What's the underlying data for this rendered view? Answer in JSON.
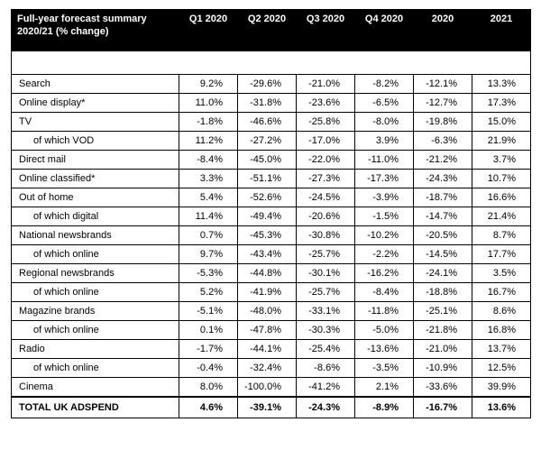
{
  "header": {
    "title": "Full-year forecast summary 2020/21 (% change)",
    "columns": [
      "Q1 2020",
      "Q2 2020",
      "Q3 2020",
      "Q4 2020",
      "2020",
      "2021"
    ]
  },
  "colors": {
    "header_bg": "#000000",
    "header_text": "#ffffff",
    "border": "#000000"
  },
  "chart_data": {
    "type": "table",
    "title": "Full-year forecast summary 2020/21 (% change)",
    "columns": [
      "Q1 2020",
      "Q2 2020",
      "Q3 2020",
      "Q4 2020",
      "2020",
      "2021"
    ],
    "rows": [
      {
        "label": "Search",
        "indent": false,
        "values": [
          "9.2%",
          "-29.6%",
          "-21.0%",
          "-8.2%",
          "-12.1%",
          "13.3%"
        ]
      },
      {
        "label": "Online display*",
        "indent": false,
        "values": [
          "11.0%",
          "-31.8%",
          "-23.6%",
          "-6.5%",
          "-12.7%",
          "17.3%"
        ]
      },
      {
        "label": "TV",
        "indent": false,
        "values": [
          "-1.8%",
          "-46.6%",
          "-25.8%",
          "-8.0%",
          "-19.8%",
          "15.0%"
        ]
      },
      {
        "label": "of which VOD",
        "indent": true,
        "values": [
          "11.2%",
          "-27.2%",
          "-17.0%",
          "3.9%",
          "-6.3%",
          "21.9%"
        ]
      },
      {
        "label": "Direct mail",
        "indent": false,
        "values": [
          "-8.4%",
          "-45.0%",
          "-22.0%",
          "-11.0%",
          "-21.2%",
          "3.7%"
        ]
      },
      {
        "label": "Online classified*",
        "indent": false,
        "values": [
          "3.3%",
          "-51.1%",
          "-27.3%",
          "-17.3%",
          "-24.3%",
          "10.7%"
        ]
      },
      {
        "label": "Out of home",
        "indent": false,
        "values": [
          "5.4%",
          "-52.6%",
          "-24.5%",
          "-3.9%",
          "-18.7%",
          "16.6%"
        ]
      },
      {
        "label": "of which digital",
        "indent": true,
        "values": [
          "11.4%",
          "-49.4%",
          "-20.6%",
          "-1.5%",
          "-14.7%",
          "21.4%"
        ]
      },
      {
        "label": "National newsbrands",
        "indent": false,
        "values": [
          "0.7%",
          "-45.3%",
          "-30.8%",
          "-10.2%",
          "-20.5%",
          "8.7%"
        ]
      },
      {
        "label": "of which online",
        "indent": true,
        "values": [
          "9.7%",
          "-43.4%",
          "-25.7%",
          "-2.2%",
          "-14.5%",
          "17.7%"
        ]
      },
      {
        "label": "Regional newsbrands",
        "indent": false,
        "values": [
          "-5.3%",
          "-44.8%",
          "-30.1%",
          "-16.2%",
          "-24.1%",
          "3.5%"
        ]
      },
      {
        "label": "of which online",
        "indent": true,
        "values": [
          "5.2%",
          "-41.9%",
          "-25.7%",
          "-8.4%",
          "-18.8%",
          "16.7%"
        ]
      },
      {
        "label": "Magazine brands",
        "indent": false,
        "values": [
          "-5.1%",
          "-48.0%",
          "-33.1%",
          "-11.8%",
          "-25.1%",
          "8.6%"
        ]
      },
      {
        "label": "of which online",
        "indent": true,
        "values": [
          "0.1%",
          "-47.8%",
          "-30.3%",
          "-5.0%",
          "-21.8%",
          "16.8%"
        ]
      },
      {
        "label": "Radio",
        "indent": false,
        "values": [
          "-1.7%",
          "-44.1%",
          "-25.4%",
          "-13.6%",
          "-21.0%",
          "13.7%"
        ]
      },
      {
        "label": "of which online",
        "indent": true,
        "values": [
          "-0.4%",
          "-32.4%",
          "-8.6%",
          "-3.5%",
          "-10.9%",
          "12.5%"
        ]
      },
      {
        "label": "Cinema",
        "indent": false,
        "values": [
          "8.0%",
          "-100.0%",
          "-41.2%",
          "2.1%",
          "-33.6%",
          "39.9%"
        ]
      }
    ],
    "total_row": {
      "label": "TOTAL UK ADSPEND",
      "values": [
        "4.6%",
        "-39.1%",
        "-24.3%",
        "-8.9%",
        "-16.7%",
        "13.6%"
      ]
    }
  }
}
